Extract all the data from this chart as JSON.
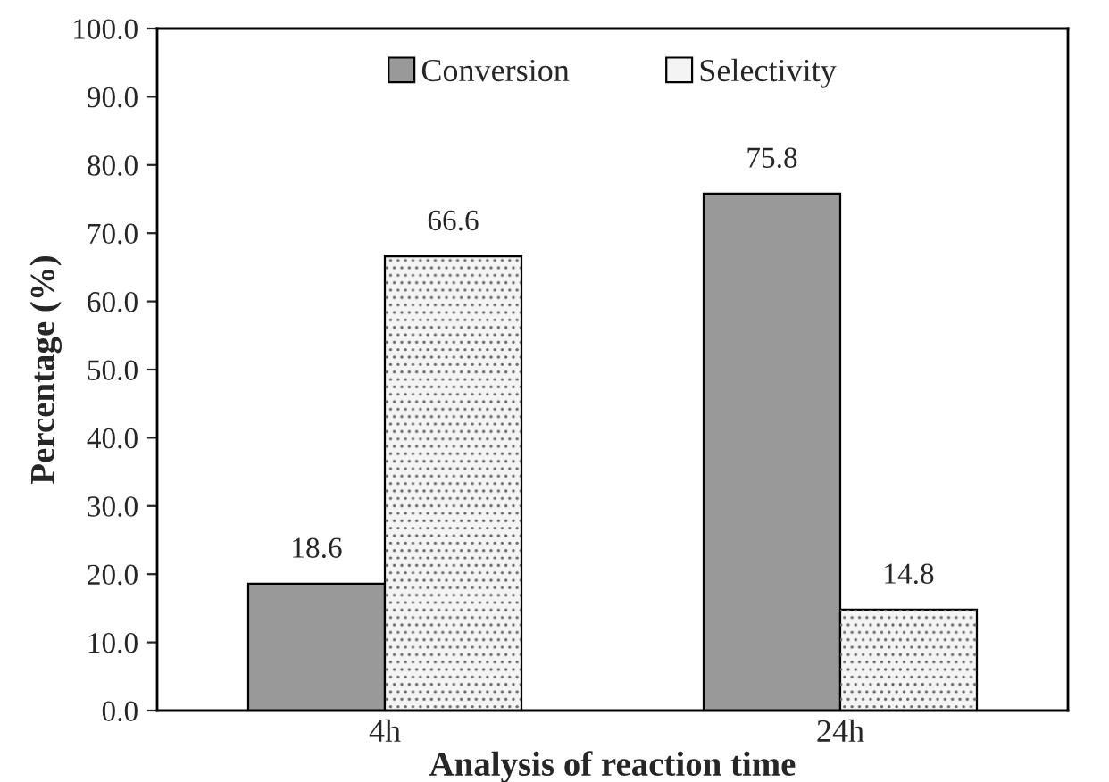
{
  "chart_data": {
    "type": "bar",
    "xlabel": "Analysis of reaction time",
    "ylabel": "Percentage (%)",
    "categories": [
      "4h",
      "24h"
    ],
    "series": [
      {
        "name": "Conversion",
        "color": "#999999",
        "values": [
          18.6,
          75.8
        ]
      },
      {
        "name": "Selectivity",
        "color": "#f4f4f4",
        "values": [
          66.6,
          14.8
        ]
      }
    ],
    "ylim": [
      0,
      100
    ],
    "yticks": [
      {
        "value": 0,
        "label": "0.0"
      },
      {
        "value": 10,
        "label": "10.0"
      },
      {
        "value": 20,
        "label": "20.0"
      },
      {
        "value": 30,
        "label": "30.0"
      },
      {
        "value": 40,
        "label": "40.0"
      },
      {
        "value": 50,
        "label": "50.0"
      },
      {
        "value": 60,
        "label": "60.0"
      },
      {
        "value": 70,
        "label": "70.0"
      },
      {
        "value": 80,
        "label": "80.0"
      },
      {
        "value": 90,
        "label": "90.0"
      },
      {
        "value": 100,
        "label": "100.0"
      }
    ],
    "data_labels": true,
    "legend": "top",
    "grid": false
  }
}
